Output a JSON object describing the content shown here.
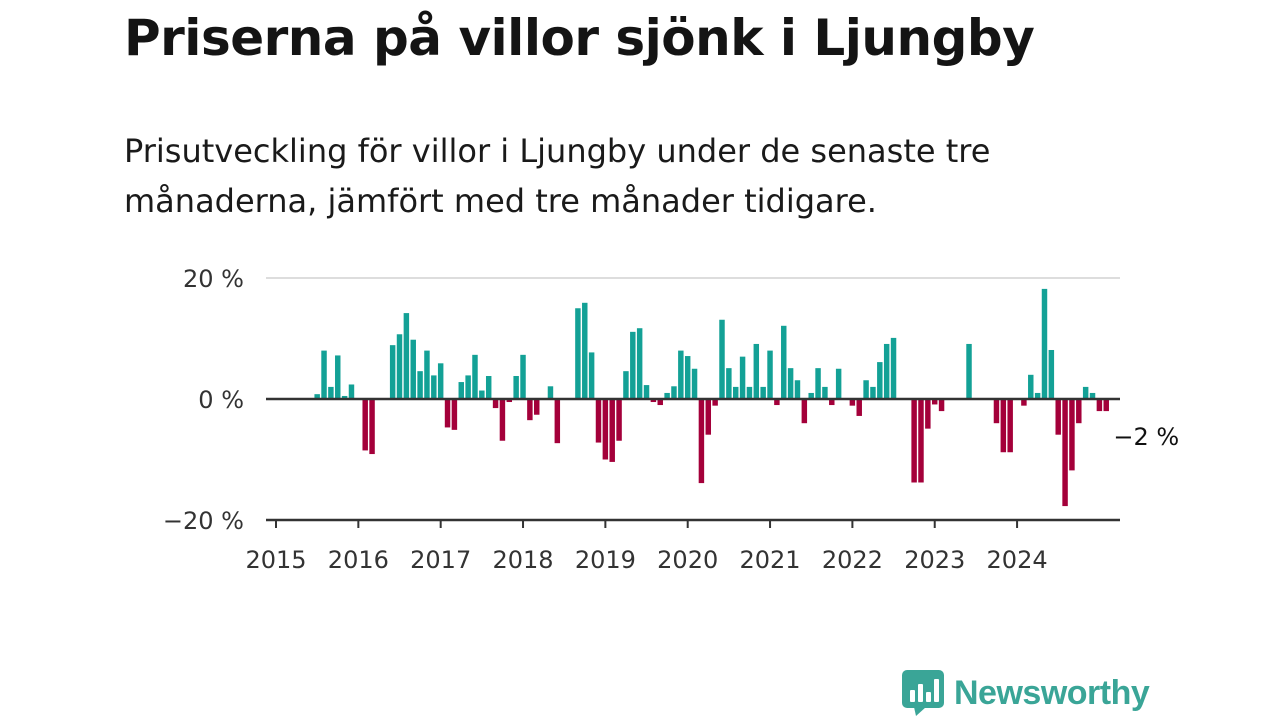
{
  "header": {
    "title": "Priserna på villor sjönk i Ljungby",
    "subtitle": "Prisutveckling för villor i Ljungby under de senaste tre månaderna, jämfört med tre månader tidigare."
  },
  "brand": {
    "name": "Newsworthy",
    "icon": "newsworthy-logo-icon",
    "color": "#3aa597"
  },
  "colors": {
    "positive": "#13a196",
    "negative": "#a4003a",
    "axis": "#333333",
    "grid": "#dddddd"
  },
  "chart_data": {
    "type": "bar",
    "title": "",
    "xlabel": "",
    "ylabel": "",
    "ylim": [
      -20,
      20
    ],
    "xlim": [
      2015.0,
      2025.25
    ],
    "y_ticks": [
      20,
      0,
      -20
    ],
    "y_tick_labels": [
      "20 %",
      "0 %",
      "−20 %"
    ],
    "x_ticks": [
      2015,
      2016,
      2017,
      2018,
      2019,
      2020,
      2021,
      2022,
      2023,
      2024
    ],
    "x_tick_labels": [
      "2015",
      "2016",
      "2017",
      "2018",
      "2019",
      "2020",
      "2021",
      "2022",
      "2023",
      "2024"
    ],
    "grid": true,
    "annotation": {
      "text": "−2 %"
    },
    "series": [
      {
        "start": 2015.5,
        "step": 0.08333,
        "values": [
          0.8,
          8,
          2,
          7.2,
          0.5,
          2.4,
          0,
          -8.5,
          -9.1,
          0,
          0,
          8.9,
          10.7,
          14.2,
          9.8,
          4.6,
          8,
          3.9,
          5.9,
          -4.7,
          -5.1,
          2.8,
          3.9,
          7.3,
          1.4,
          3.8,
          -1.5,
          -6.9,
          -0.5,
          3.8,
          7.3,
          -3.5,
          -2.6,
          0,
          2.1,
          -7.3,
          0,
          0,
          15,
          15.9,
          7.7,
          -7.2,
          -10,
          -10.4,
          -6.9,
          4.6,
          11.1,
          11.7,
          2.3,
          -0.5,
          -1,
          1,
          2.1,
          8,
          7.1,
          5,
          -13.9,
          -5.9,
          -1.1,
          13.1,
          5.1,
          2,
          7,
          2,
          9.1,
          2,
          8,
          -1,
          12.1,
          5.1,
          3.1,
          -4,
          1,
          5.1,
          2,
          -1,
          5,
          0,
          -1.1,
          -2.8,
          3.1,
          2,
          6.1,
          9.1,
          10.1,
          0,
          0,
          -13.8,
          -13.8,
          -4.9,
          -0.9,
          -2,
          0,
          0,
          0,
          9.1,
          0,
          0,
          0,
          -4,
          -8.8,
          -8.8,
          0,
          -1.1,
          4,
          1,
          18.2,
          8.1,
          -5.9,
          -17.7,
          -11.8,
          -4,
          2,
          1,
          -2,
          -2
        ]
      }
    ]
  }
}
